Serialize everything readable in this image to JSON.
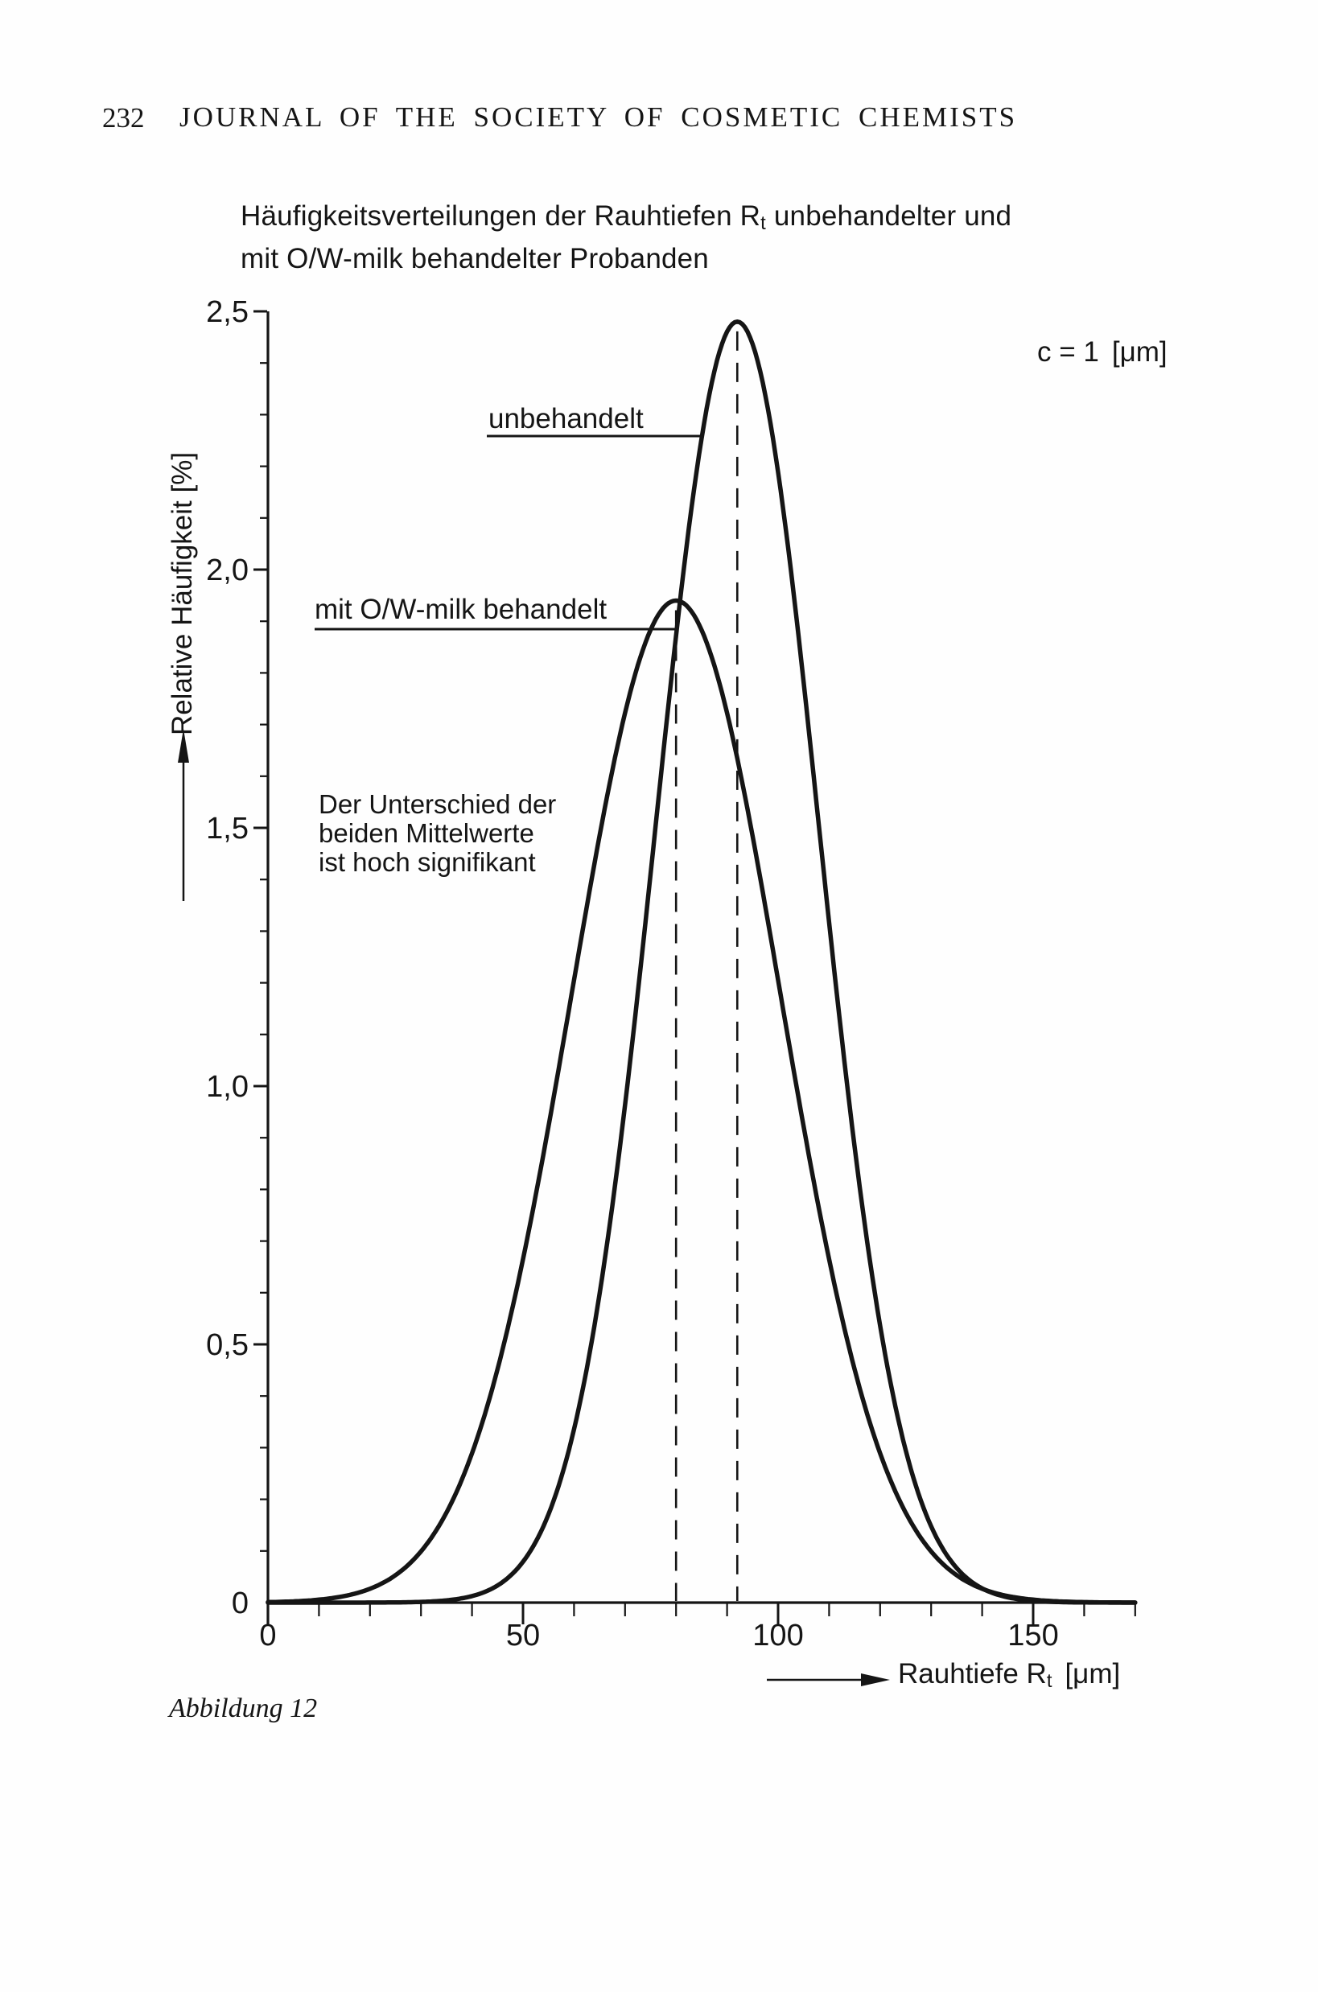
{
  "page": {
    "number": "232",
    "journal_header": "JOURNAL OF THE SOCIETY OF COSMETIC CHEMISTS",
    "caption": "Abbildung 12"
  },
  "chart_data": {
    "type": "line",
    "title": {
      "part1": "Häufigkeitsverteilungen der Rauhtiefen R",
      "part1_sub": "t",
      "part2": " unbehandelter und",
      "line2": "mit O/W-milk behandelter Probanden"
    },
    "ylabel": "Relative Häufigkeit [%]",
    "xlabel": {
      "part1": "Rauhtiefe R",
      "sub": "t",
      "unit": "[μm]"
    },
    "annotation": {
      "text": "c = 1",
      "unit": "[μm]"
    },
    "note_lines": [
      "Der Unterschied der",
      "beiden Mittelwerte",
      "ist hoch signifikant"
    ],
    "xlim": [
      0,
      170
    ],
    "ylim": [
      0,
      2.5
    ],
    "x_major_ticks": [
      0,
      50,
      100,
      150
    ],
    "x_major_tick_labels": [
      "0",
      "50",
      "100",
      "150"
    ],
    "x_minor_tick_step": 10,
    "y_major_ticks": [
      0,
      0.5,
      1.0,
      1.5,
      2.0,
      2.5
    ],
    "y_major_tick_labels": [
      "0",
      "0,5",
      "1,0",
      "1,5",
      "2,0",
      "2,5"
    ],
    "y_minor_tick_step": 0.1,
    "grid": false,
    "legend_position": "inline-labels",
    "series": [
      {
        "name": "mit O/W-milk behandelt",
        "shape": "gaussian",
        "mean": 80,
        "sigma": 20.5,
        "peak": 1.94,
        "mean_line_dashed": true
      },
      {
        "name": "unbehandelt",
        "shape": "gaussian",
        "mean": 92,
        "sigma": 16,
        "peak": 2.48,
        "mean_line_dashed": true
      }
    ]
  }
}
